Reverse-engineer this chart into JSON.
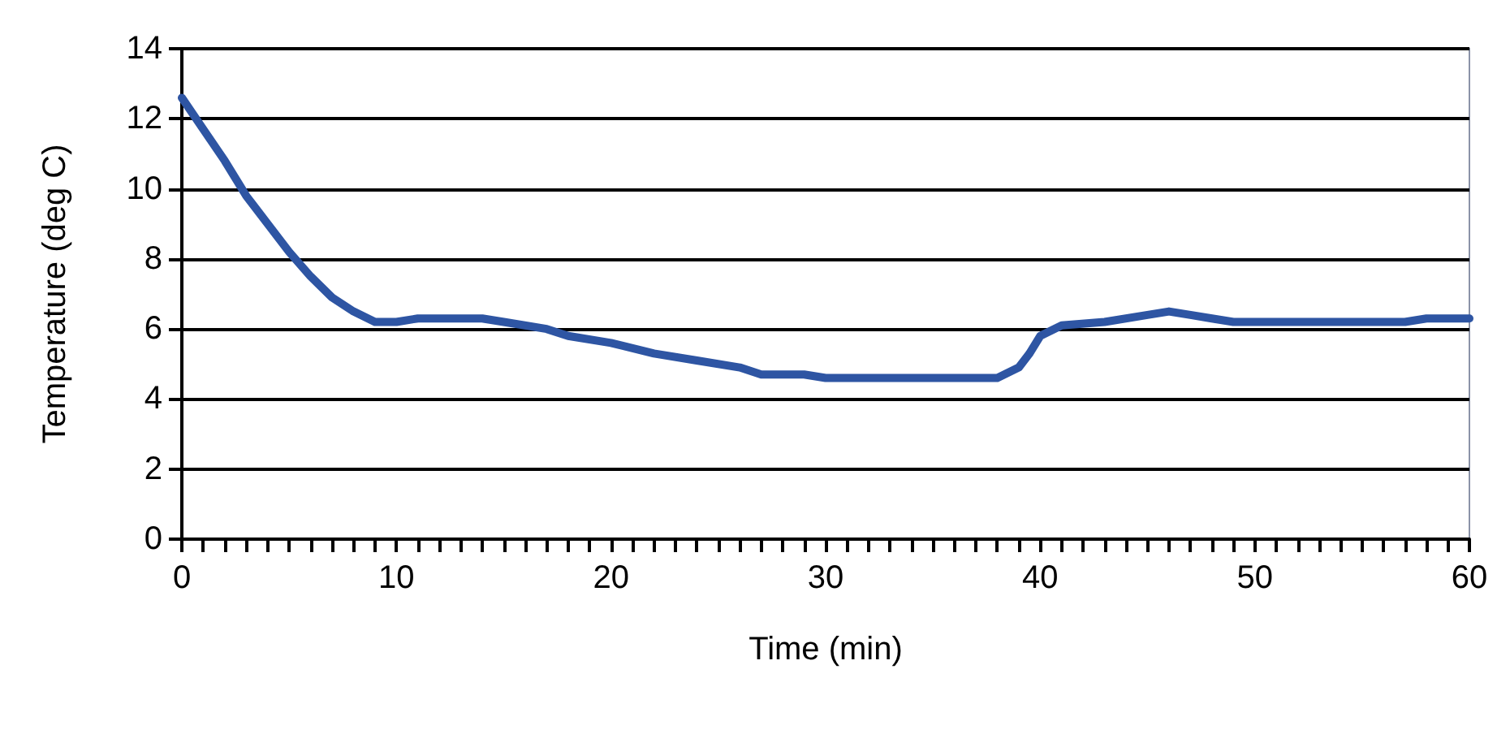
{
  "chart_data": {
    "type": "line",
    "xlabel": "Time (min)",
    "ylabel": "Temperature (deg C)",
    "grid": "y",
    "marker": "none",
    "line_style": "solid",
    "xlim": [
      0,
      60
    ],
    "ylim": [
      0,
      14
    ],
    "yticks": [
      0,
      2,
      4,
      6,
      8,
      10,
      12,
      14
    ],
    "xticks": [
      0,
      {
        "value": 1,
        "label": null
      },
      {
        "value": 2,
        "label": null
      },
      {
        "value": 3,
        "label": null
      },
      {
        "value": 4,
        "label": null
      },
      {
        "value": 5,
        "label": null
      },
      {
        "value": 6,
        "label": null
      },
      {
        "value": 7,
        "label": null
      },
      {
        "value": 8,
        "label": null
      },
      {
        "value": 9,
        "label": null
      },
      10,
      {
        "value": 11,
        "label": null
      },
      {
        "value": 12,
        "label": null
      },
      {
        "value": 13,
        "label": null
      },
      {
        "value": 14,
        "label": null
      },
      {
        "value": 15,
        "label": null
      },
      {
        "value": 16,
        "label": null
      },
      {
        "value": 17,
        "label": null
      },
      {
        "value": 18,
        "label": null
      },
      {
        "value": 19,
        "label": null
      },
      20,
      {
        "value": 21,
        "label": null
      },
      {
        "value": 22,
        "label": null
      },
      {
        "value": 23,
        "label": null
      },
      {
        "value": 24,
        "label": null
      },
      {
        "value": 25,
        "label": null
      },
      {
        "value": 26,
        "label": null
      },
      {
        "value": 27,
        "label": null
      },
      {
        "value": 28,
        "label": null
      },
      {
        "value": 29,
        "label": null
      },
      30,
      {
        "value": 31,
        "label": null
      },
      {
        "value": 32,
        "label": null
      },
      {
        "value": 33,
        "label": null
      },
      {
        "value": 34,
        "label": null
      },
      {
        "value": 35,
        "label": null
      },
      {
        "value": 36,
        "label": null
      },
      {
        "value": 37,
        "label": null
      },
      {
        "value": 38,
        "label": null
      },
      {
        "value": 39,
        "label": null
      },
      40,
      {
        "value": 41,
        "label": null
      },
      {
        "value": 42,
        "label": null
      },
      {
        "value": 43,
        "label": null
      },
      {
        "value": 44,
        "label": null
      },
      {
        "value": 45,
        "label": null
      },
      {
        "value": 46,
        "label": null
      },
      {
        "value": 47,
        "label": null
      },
      {
        "value": 48,
        "label": null
      },
      {
        "value": 49,
        "label": null
      },
      50,
      {
        "value": 51,
        "label": null
      },
      {
        "value": 52,
        "label": null
      },
      {
        "value": 53,
        "label": null
      },
      {
        "value": 54,
        "label": null
      },
      {
        "value": 55,
        "label": null
      },
      {
        "value": 56,
        "label": null
      },
      {
        "value": 57,
        "label": null
      },
      {
        "value": 58,
        "label": null
      },
      {
        "value": 59,
        "label": null
      },
      60
    ],
    "x": [
      0,
      1,
      2,
      3,
      4,
      5,
      6,
      7,
      8,
      9,
      10,
      11,
      12,
      14,
      15,
      17,
      18,
      20,
      22,
      24,
      26,
      27,
      29,
      30,
      34,
      38,
      39,
      39.5,
      40,
      41,
      43,
      45,
      46,
      47,
      48,
      49,
      55,
      57,
      58,
      60
    ],
    "series": [
      {
        "color": "#2e55a3",
        "values": [
          12.6,
          11.7,
          10.8,
          9.8,
          9.0,
          8.2,
          7.5,
          6.9,
          6.5,
          6.2,
          6.2,
          6.3,
          6.3,
          6.3,
          6.2,
          6.0,
          5.8,
          5.6,
          5.3,
          5.1,
          4.9,
          4.7,
          4.7,
          4.6,
          4.6,
          4.6,
          4.9,
          5.3,
          5.8,
          6.1,
          6.2,
          6.4,
          6.5,
          6.4,
          6.3,
          6.2,
          6.2,
          6.2,
          6.3,
          6.3
        ]
      }
    ]
  }
}
